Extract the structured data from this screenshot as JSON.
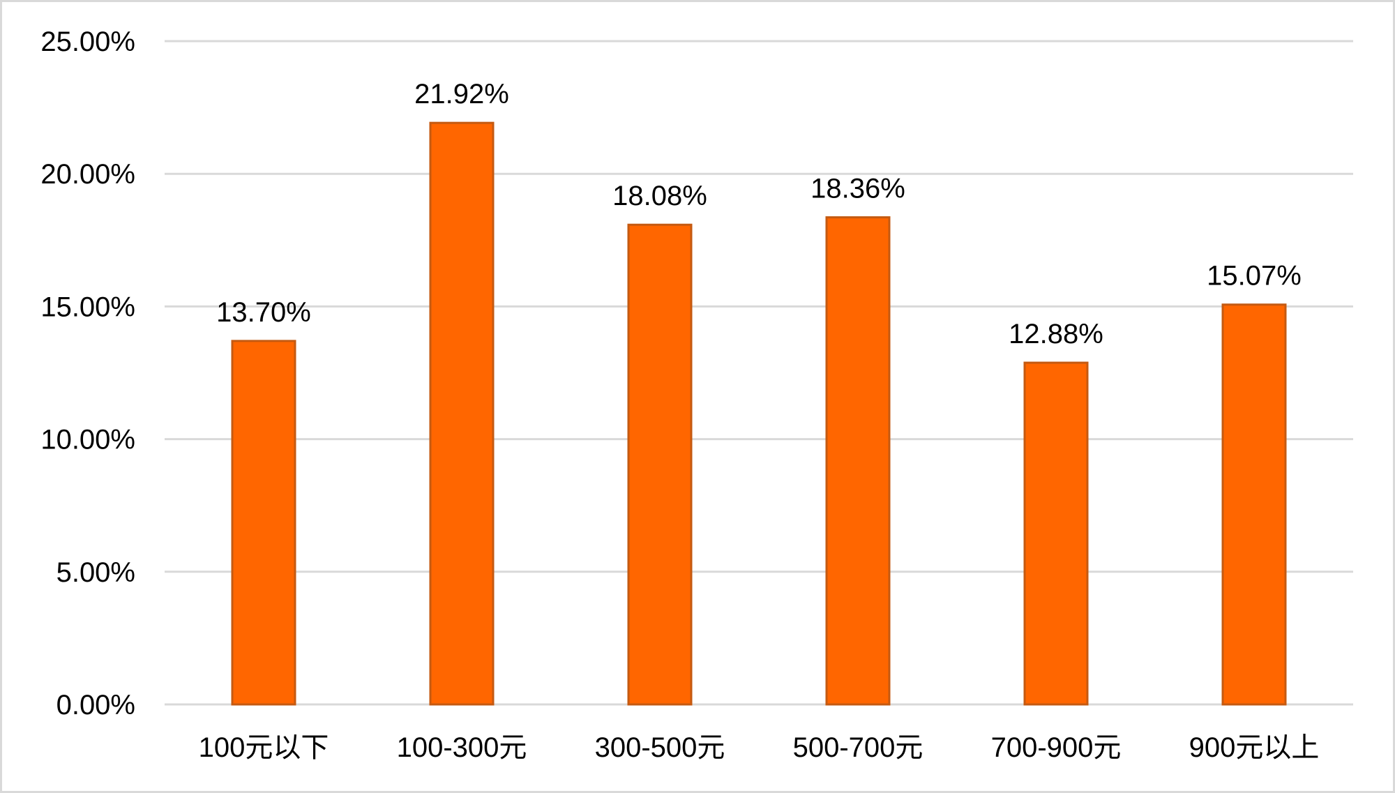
{
  "chart_data": {
    "type": "bar",
    "categories": [
      "100元以下",
      "100-300元",
      "300-500元",
      "500-700元",
      "700-900元",
      "900元以上"
    ],
    "values": [
      13.7,
      21.92,
      18.08,
      18.36,
      12.88,
      15.07
    ],
    "data_labels": [
      "13.70%",
      "21.92%",
      "18.08%",
      "18.36%",
      "12.88%",
      "15.07%"
    ],
    "title": "",
    "xlabel": "",
    "ylabel": "",
    "ylim": [
      0,
      25
    ],
    "y_ticks": [
      0,
      5,
      10,
      15,
      20,
      25
    ],
    "y_tick_labels": [
      "0.00%",
      "5.00%",
      "10.00%",
      "15.00%",
      "20.00%",
      "25.00%"
    ],
    "grid": true,
    "legend": "none",
    "colors": {
      "bar_fill": "#ff6600",
      "bar_border": "#c55a11",
      "grid": "#d9d9d9"
    }
  }
}
